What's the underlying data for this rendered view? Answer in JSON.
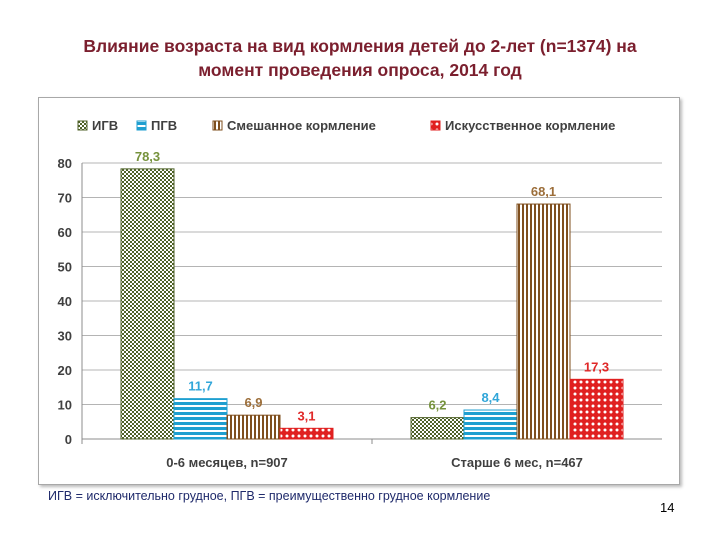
{
  "slide": {
    "title_line1": "Влияние возраста на вид кормления детей до 2-лет (n=1374) на",
    "title_line2": "момент проведения опроса, 2014 год",
    "footnote": "ИГВ = исключительно грудное, ПГВ = преимущественно грудное кормление",
    "page_number": "14"
  },
  "chart_data": {
    "type": "bar",
    "categories": [
      "0-6 месяцев, n=907",
      "Старше 6 мес, n=467"
    ],
    "series": [
      {
        "name": "ИГВ",
        "values": [
          78.3,
          6.2
        ],
        "labels": [
          "78,3",
          "6,2"
        ],
        "color": "#4f6228",
        "pattern": "checker"
      },
      {
        "name": "ПГВ",
        "values": [
          11.7,
          8.4
        ],
        "labels": [
          "11,7",
          "8,4"
        ],
        "color": "#1f9fd0",
        "pattern": "horizontal"
      },
      {
        "name": "Смешанное кормление",
        "values": [
          6.9,
          68.1
        ],
        "labels": [
          "6,9",
          "68,1"
        ],
        "color": "#7f4f1e",
        "pattern": "vertical"
      },
      {
        "name": "Искусственное кормление",
        "values": [
          3.1,
          17.3
        ],
        "labels": [
          "3,1",
          "17,3"
        ],
        "color": "#e02020",
        "pattern": "dots"
      }
    ],
    "label_colors": [
      "#76923c",
      "#31a6d9",
      "#9c6e3a",
      "#e02828"
    ],
    "yticks": [
      "0",
      "10",
      "20",
      "30",
      "40",
      "50",
      "60",
      "70",
      "80"
    ],
    "ylim": [
      0,
      80
    ],
    "grid": true,
    "legend_position": "top"
  }
}
